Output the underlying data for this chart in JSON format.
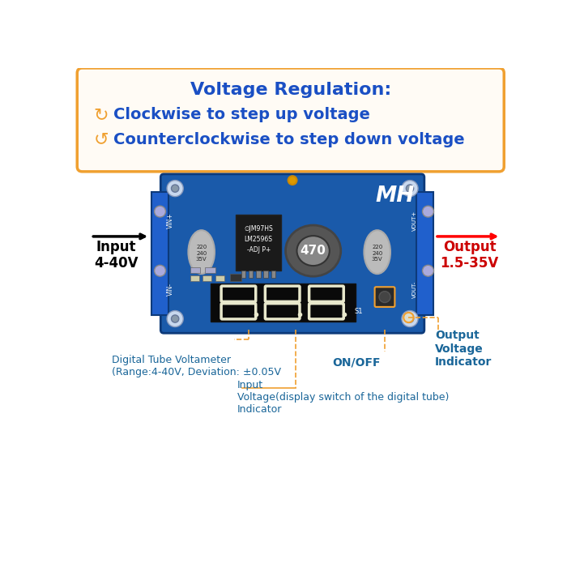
{
  "bg_color": "#ffffff",
  "box_bg": "#fffbf5",
  "box_border": "#f0a030",
  "title_text": "Voltage Regulation:",
  "title_color": "#1a4fc4",
  "line1_text": "Clockwise to step up voltage",
  "line2_text": "Counterclockwise to step down voltage",
  "lines_color": "#1a4fc4",
  "arrow_color": "#f0a030",
  "input_label": "Input\n4-40V",
  "output_label": "Output\n1.5-35V",
  "input_color": "#000000",
  "output_color": "#cc0000",
  "board_color": "#1a5aaa",
  "board_dark": "#0d3a7a",
  "annotation_color": "#1a6699",
  "digi_tube_text": "Digital Tube Voltameter\n(Range:4-40V, Deviation: ±0.05V",
  "input_volt_text": "Input\nVoltage(display switch of the digital tube)\nIndicator",
  "onoff_text": "ON/OFF",
  "output_volt_ind_text": "Output\nVoltage\nIndicator",
  "dashed_color": "#f0a030",
  "mh_text": "MH",
  "chip_text": "∅JM97HS\nLM2596S\n-ADJ P+",
  "inductor_text": "470"
}
